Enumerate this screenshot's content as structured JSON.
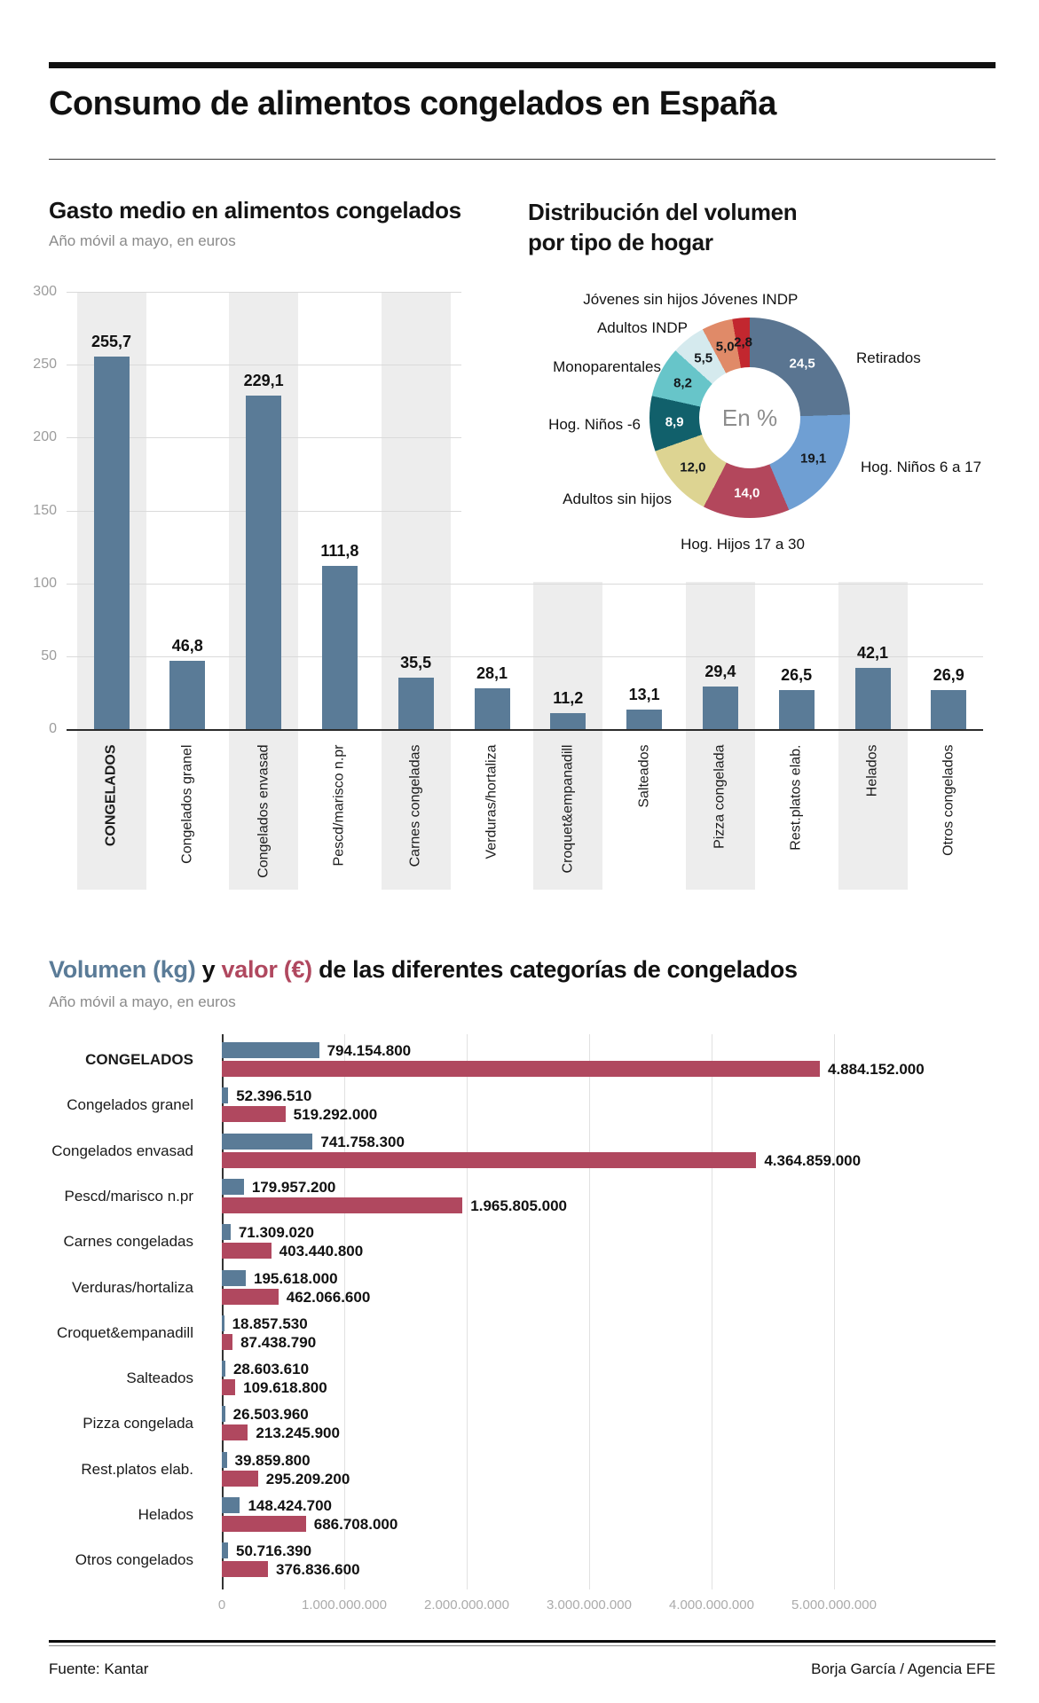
{
  "page": {
    "title": "Consumo de alimentos congelados en España",
    "footer": {
      "source": "Fuente: Kantar",
      "credit": "Borja García / Agencia EFE"
    }
  },
  "colors": {
    "volume_blue": "#5a7b97",
    "value_maroon": "#b0485f",
    "stripe_gray": "#ededed"
  },
  "chart_data": [
    {
      "id": "gasto-medio",
      "type": "bar",
      "title": "Gasto medio en alimentos congelados",
      "subtitle": "Año móvil a mayo, en euros",
      "categories": [
        "CONGELADOS",
        "Congelados granel",
        "Congelados envasad",
        "Pescd/marisco n.pr",
        "Carnes congeladas",
        "Verduras/hortaliza",
        "Croquet&empanadill",
        "Salteados",
        "Pizza congelada",
        "Rest.platos elab.",
        "Helados",
        "Otros congelados"
      ],
      "values": [
        255.7,
        46.8,
        229.1,
        111.8,
        35.5,
        28.1,
        11.2,
        13.1,
        29.4,
        26.5,
        42.1,
        26.9
      ],
      "value_labels": [
        "255,7",
        "46,8",
        "229,1",
        "111,8",
        "35,5",
        "28,1",
        "11,2",
        "13,1",
        "29,4",
        "26,5",
        "42,1",
        "26,9"
      ],
      "ylim": [
        0,
        300
      ],
      "yticks": [
        0,
        50,
        100,
        150,
        200,
        250,
        300
      ],
      "ytick_labels": [
        "0",
        "50",
        "100",
        "150",
        "200",
        "250",
        "300"
      ],
      "grid": true,
      "bar_color": "#5a7b97",
      "striped_columns": "alternating, starting with first"
    },
    {
      "id": "distribucion-volumen-hogar",
      "type": "pie",
      "title_line1": "Distribución del volumen",
      "title_line2": "por tipo de hogar",
      "center_label": "En %",
      "start_angle": "12 o'clock, clockwise",
      "slices": [
        {
          "label": "Retirados",
          "value": 24.5,
          "value_label": "24,5",
          "color": "#5a7591",
          "text_color": "#ffffff"
        },
        {
          "label": "Hog. Niños 6 a 17",
          "value": 19.1,
          "value_label": "19,1",
          "color": "#6f9fd3",
          "text_color": "#14181c"
        },
        {
          "label": "Hog. Hijos 17 a 30",
          "value": 14.0,
          "value_label": "14,0",
          "color": "#b3475c",
          "text_color": "#ffffff"
        },
        {
          "label": "Adultos sin hijos",
          "value": 12.0,
          "value_label": "12,0",
          "color": "#ddd492",
          "text_color": "#14181c"
        },
        {
          "label": "Hog. Niños -6",
          "value": 8.9,
          "value_label": "8,9",
          "color": "#11606b",
          "text_color": "#ffffff"
        },
        {
          "label": "Monoparentales",
          "value": 8.2,
          "value_label": "8,2",
          "color": "#67c5c9",
          "text_color": "#14181c"
        },
        {
          "label": "Adultos INDP",
          "value": 5.5,
          "value_label": "5,5",
          "color": "#d5eaee",
          "text_color": "#14181c"
        },
        {
          "label": "Jóvenes sin hijos",
          "value": 5.0,
          "value_label": "5,0",
          "color": "#e08a68",
          "text_color": "#14181c"
        },
        {
          "label": "Jóvenes INDP",
          "value": 2.8,
          "value_label": "2,8",
          "color": "#c2272f",
          "text_color": "#14181c"
        }
      ]
    },
    {
      "id": "volumen-valor-categorias",
      "type": "bar",
      "orientation": "horizontal",
      "title_parts": {
        "volumen": "Volumen (kg)",
        "conj": " y ",
        "valor": "valor (€)",
        "rest": " de las diferentes categorías de congelados"
      },
      "subtitle": "Año móvil a mayo, en euros",
      "categories": [
        "CONGELADOS",
        "Congelados granel",
        "Congelados envasad",
        "Pescd/marisco n.pr",
        "Carnes congeladas",
        "Verduras/hortaliza",
        "Croquet&empanadill",
        "Salteados",
        "Pizza congelada",
        "Rest.platos elab.",
        "Helados",
        "Otros congelados"
      ],
      "series": [
        {
          "name": "Volumen (kg)",
          "color": "#5a7b97",
          "values": [
            794154800,
            52396510,
            741758300,
            179957200,
            71309020,
            195618000,
            18857530,
            28603610,
            26503960,
            39859800,
            148424700,
            50716390
          ],
          "labels": [
            "794.154.800",
            "52.396.510",
            "741.758.300",
            "179.957.200",
            "71.309.020",
            "195.618.000",
            "18.857.530",
            "28.603.610",
            "26.503.960",
            "39.859.800",
            "148.424.700",
            "50.716.390"
          ]
        },
        {
          "name": "Valor (€)",
          "color": "#b0485f",
          "values": [
            4884152000,
            519292000,
            4364859000,
            1965805000,
            403440800,
            462066600,
            87438790,
            109618800,
            213245900,
            295209200,
            686708000,
            376836600
          ],
          "labels": [
            "4.884.152.000",
            "519.292.000",
            "4.364.859.000",
            "1.965.805.000",
            "403.440.800",
            "462.066.600",
            "87.438.790",
            "109.618.800",
            "213.245.900",
            "295.209.200",
            "686.708.000",
            "376.836.600"
          ]
        }
      ],
      "xlim": [
        0,
        5000000000
      ],
      "xticks": [
        0,
        1000000000,
        2000000000,
        3000000000,
        4000000000,
        5000000000
      ],
      "xtick_labels": [
        "0",
        "1.000.000.000",
        "2.000.000.000",
        "3.000.000.000",
        "4.000.000.000",
        "5.000.000.000"
      ]
    }
  ]
}
